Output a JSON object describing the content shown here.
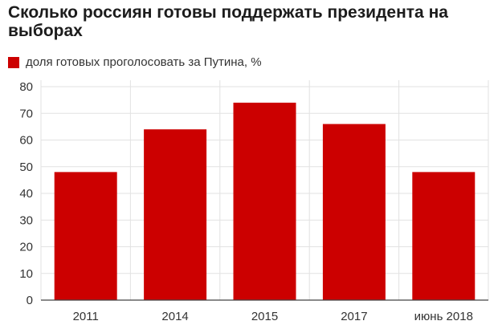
{
  "title": "Сколько россиян готовы поддержать президента на выборах",
  "colors": {
    "bar": "#cc0000",
    "grid": "#e2e2e2",
    "axis": "#444444"
  },
  "chart_data": {
    "type": "bar",
    "categories": [
      "2011",
      "2014",
      "2015",
      "2017",
      "июнь 2018"
    ],
    "series": [
      {
        "name": "доля готовых проголосовать за Путина, %",
        "values": [
          48,
          64,
          74,
          66,
          48
        ]
      }
    ],
    "ylim": [
      0,
      80
    ],
    "yticks": [
      "0",
      "10",
      "20",
      "30",
      "40",
      "50",
      "60",
      "70",
      "80"
    ],
    "grid": true,
    "legend_position": "top-left"
  }
}
